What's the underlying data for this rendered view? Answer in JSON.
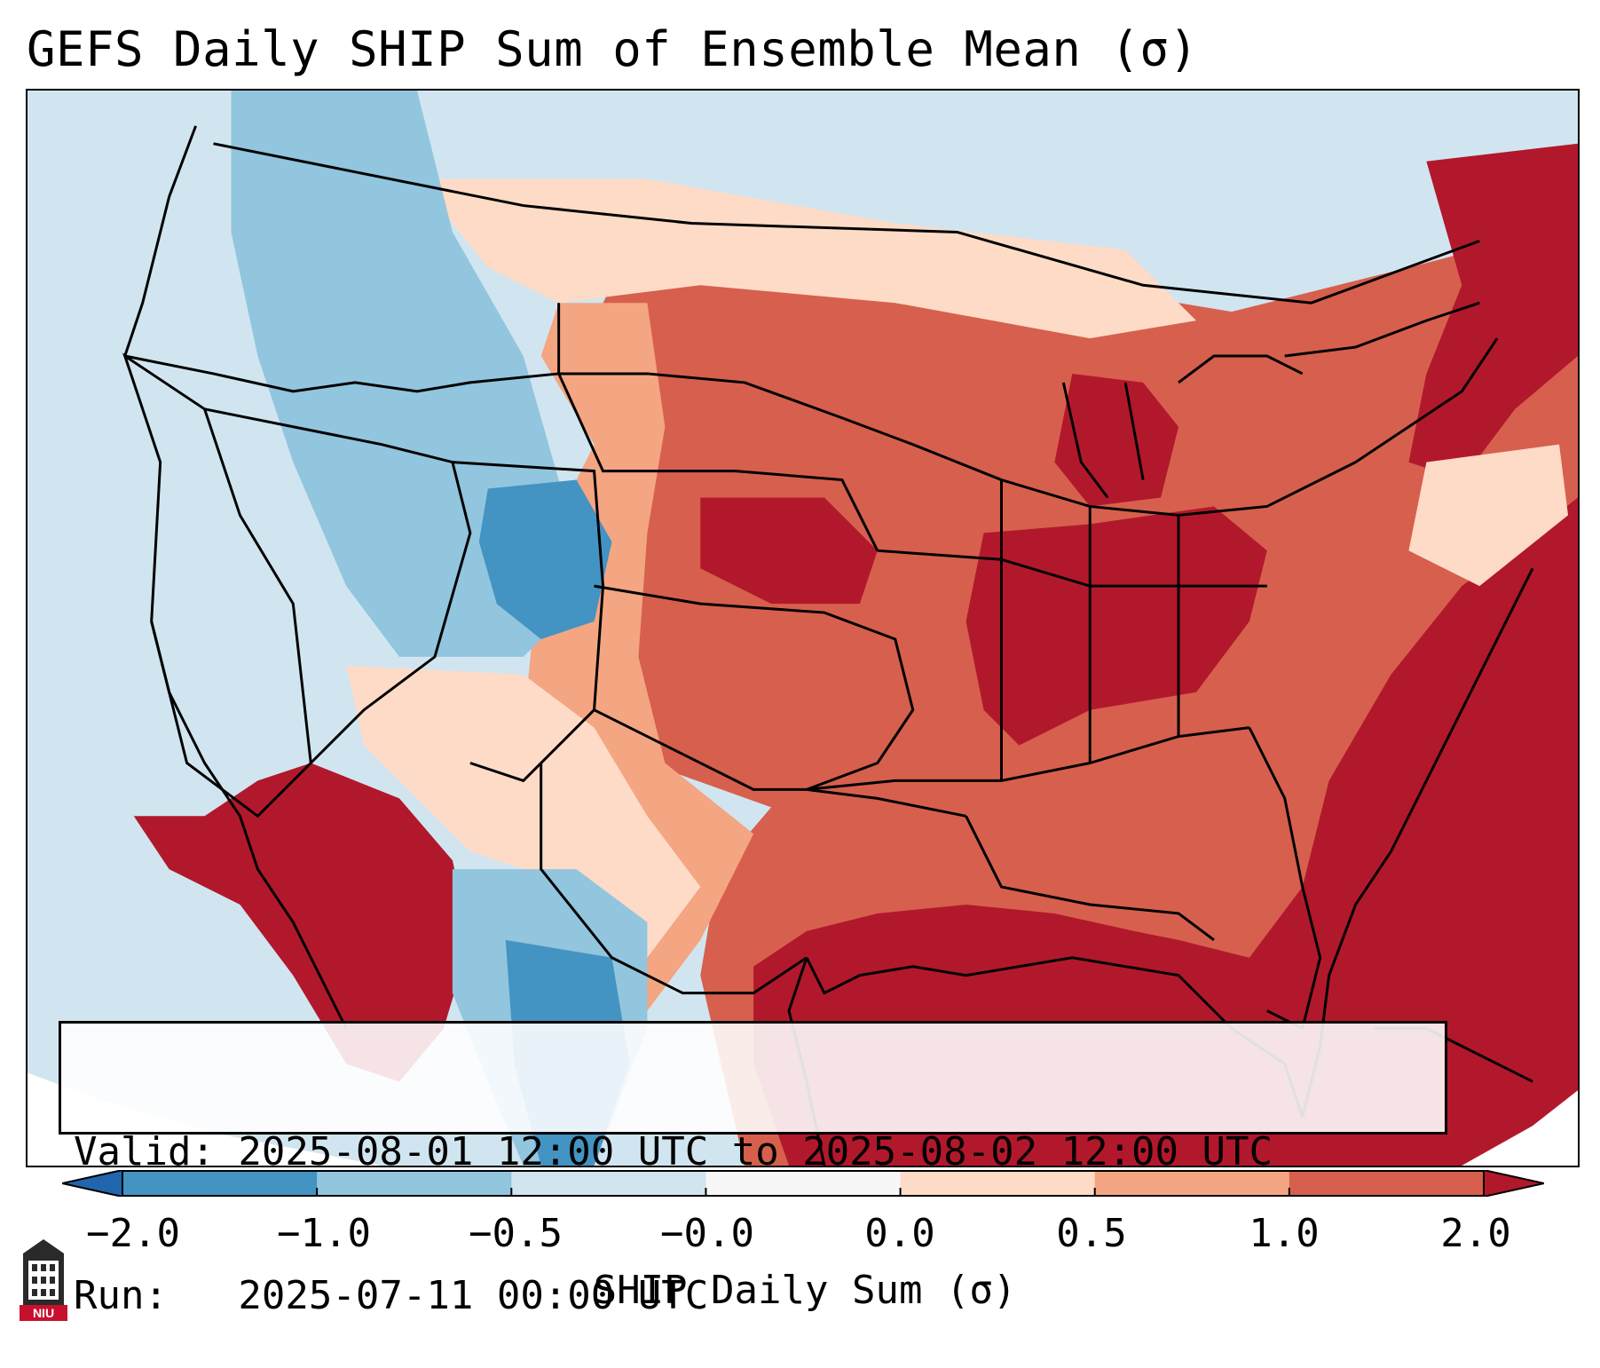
{
  "title": "GEFS Daily SHIP Sum of Ensemble Mean (σ)",
  "info": {
    "valid_line": "Valid: 2025-08-01 12:00 UTC to 2025-08-02 12:00 UTC",
    "run_line": "Run:   2025-07-11 00:00 UTC"
  },
  "colorbar": {
    "label": "SHIP Daily Sum (σ)",
    "ticks": [
      "−2.0",
      "−1.0",
      "−0.5",
      "−0.0",
      "0.0",
      "0.5",
      "1.0",
      "2.0"
    ],
    "colors": [
      "#4393c3",
      "#92c5de",
      "#d1e5f0",
      "#f7f7f7",
      "#fddbc7",
      "#f4a582",
      "#d6604d"
    ],
    "under_color": "#2166ac",
    "over_color": "#b2182b"
  },
  "map": {
    "ocean_color": "#d1e5f0",
    "land_west_color": "#d1e5f0",
    "blue_color": "#92c5de",
    "deep_blue_color": "#4393c3",
    "light_red_color": "#fddbc7",
    "mid_red_color": "#f4a582",
    "red_color": "#d6604d",
    "deep_red_color": "#b2182b",
    "line_color": "#000000"
  },
  "logo": {
    "text": "NIU",
    "color": "#c8102e"
  }
}
